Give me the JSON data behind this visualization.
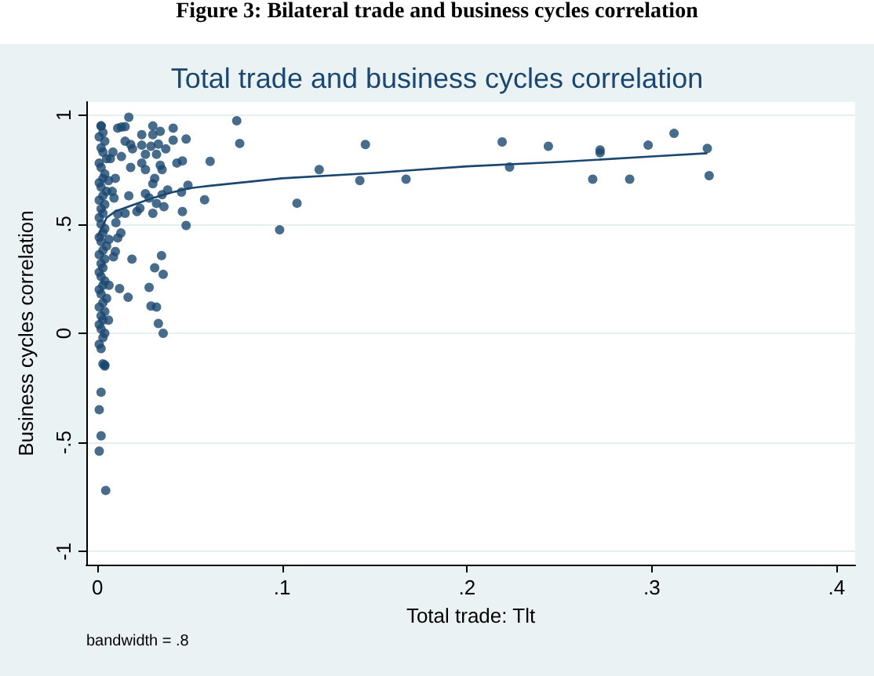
{
  "chart_data": {
    "type": "scatter",
    "title": "Figure 3: Bilateral trade and business cycles correlation",
    "subtitle": "Total trade and business cycles correlation",
    "xlabel": "Total trade: Tlt",
    "ylabel": "Business cycles correlation",
    "annotations": [
      "bandwidth = .8"
    ],
    "xlim": [
      -0.006,
      0.41
    ],
    "ylim": [
      -1.06,
      1.06
    ],
    "xticks": [
      0,
      {
        "value": 0.1,
        "label": ".1"
      },
      {
        "value": 0.2,
        "label": ".2"
      },
      {
        "value": 0.3,
        "label": ".3"
      },
      {
        "value": 0.4,
        "label": ".4"
      }
    ],
    "yticks": [
      -1,
      {
        "value": -0.5,
        "label": "-.5"
      },
      0,
      {
        "value": 0.5,
        "label": ".5"
      },
      1
    ],
    "grid": "y",
    "marker": "circle",
    "series": [
      {
        "color": "#1a476f",
        "x": [
          0.0754,
          0.077,
          0.0986,
          0.108,
          0.12,
          0.142,
          0.145,
          0.167,
          0.219,
          0.223,
          0.244,
          0.268,
          0.272,
          0.272,
          0.288,
          0.298,
          0.312,
          0.33,
          0.331,
          0.058,
          0.061,
          0.017,
          0.002,
          0.03,
          0.041,
          0.011,
          0.013,
          0.015,
          0.024,
          0.03,
          0.034,
          0.048,
          0.015,
          0.018,
          0.019,
          0.024,
          0.029,
          0.033,
          0.037,
          0.041,
          0.0084,
          0.013,
          0.026,
          0.032,
          0.043,
          0.046,
          0.024,
          0.026,
          0.034,
          0.035,
          0.018,
          0.0097,
          0.03,
          0.031,
          0.009,
          0.017,
          0.026,
          0.028,
          0.035,
          0.038,
          0.0455,
          0.049,
          0.032,
          0.036,
          0.023,
          0.0214,
          0.015,
          0.011,
          0.03,
          0.046,
          0.048,
          0.01,
          0.0127,
          0.011,
          0.0063,
          0.0097,
          0.0087,
          0.0187,
          0.0347,
          0.0063,
          0.012,
          0.0166,
          0.028,
          0.031,
          0.0356,
          0.029,
          0.032,
          0.033,
          0.0356,
          0.006,
          0.004,
          0.002,
          0.003,
          0.001,
          0.004,
          0.002,
          0.003,
          0.005,
          0.001,
          0.002,
          0.004,
          0.003,
          0.001,
          0.002,
          0.005,
          0.003,
          0.001,
          0.004,
          0.002,
          0.003,
          0.001,
          0.002,
          0.004,
          0.003,
          0.001,
          0.002,
          0.005,
          0.003,
          0.001,
          0.004,
          0.002,
          0.003,
          0.001,
          0.002,
          0.004,
          0.003,
          0.001,
          0.002,
          0.005,
          0.003,
          0.001,
          0.004,
          0.002,
          0.003,
          0.001,
          0.002,
          0.004,
          0.003,
          0.001,
          0.002,
          0.003,
          0.004,
          0.002,
          0.001,
          0.002,
          0.001,
          0.0045,
          0.007,
          0.006,
          0.008
        ],
        "values": [
          0.974,
          0.87,
          0.474,
          0.596,
          0.75,
          0.7,
          0.865,
          0.706,
          0.877,
          0.762,
          0.857,
          0.706,
          0.84,
          0.827,
          0.706,
          0.862,
          0.916,
          0.847,
          0.722,
          0.612,
          0.788,
          0.99,
          0.95,
          0.95,
          0.94,
          0.94,
          0.945,
          0.947,
          0.91,
          0.91,
          0.925,
          0.89,
          0.88,
          0.865,
          0.845,
          0.862,
          0.857,
          0.867,
          0.845,
          0.885,
          0.83,
          0.81,
          0.82,
          0.82,
          0.78,
          0.79,
          0.78,
          0.75,
          0.77,
          0.75,
          0.76,
          0.71,
          0.685,
          0.71,
          0.62,
          0.63,
          0.64,
          0.62,
          0.635,
          0.657,
          0.647,
          0.678,
          0.595,
          0.58,
          0.573,
          0.558,
          0.55,
          0.547,
          0.55,
          0.558,
          0.494,
          0.507,
          0.46,
          0.437,
          0.43,
          0.375,
          0.35,
          0.34,
          0.356,
          0.22,
          0.205,
          0.165,
          0.21,
          0.3,
          0.27,
          0.125,
          0.12,
          0.045,
          0.0,
          0.06,
          -0.145,
          0.95,
          0.92,
          0.9,
          0.88,
          0.85,
          0.83,
          0.8,
          0.78,
          0.76,
          0.73,
          0.71,
          0.69,
          0.67,
          0.65,
          0.63,
          0.61,
          0.59,
          0.57,
          0.55,
          0.53,
          0.5,
          0.48,
          0.46,
          0.44,
          0.42,
          0.4,
          0.38,
          0.36,
          0.34,
          0.32,
          0.3,
          0.28,
          0.26,
          0.24,
          0.22,
          0.2,
          0.18,
          0.16,
          0.14,
          0.12,
          0.1,
          0.08,
          0.06,
          0.04,
          0.02,
          0.0,
          -0.02,
          -0.05,
          -0.07,
          -0.14,
          -0.15,
          -0.27,
          -0.35,
          -0.47,
          -0.54,
          -0.72,
          0.8,
          0.7,
          0.65
        ]
      },
      {
        "type": "line",
        "color": "#1a476f",
        "marker": "none",
        "x": [
          0.0,
          0.005,
          0.01,
          0.02,
          0.03,
          0.04,
          0.05,
          0.06,
          0.1,
          0.15,
          0.2,
          0.25,
          0.3,
          0.33
        ],
        "values": [
          0.44,
          0.53,
          0.56,
          0.59,
          0.62,
          0.645,
          0.665,
          0.675,
          0.71,
          0.735,
          0.765,
          0.785,
          0.81,
          0.825
        ]
      }
    ]
  }
}
